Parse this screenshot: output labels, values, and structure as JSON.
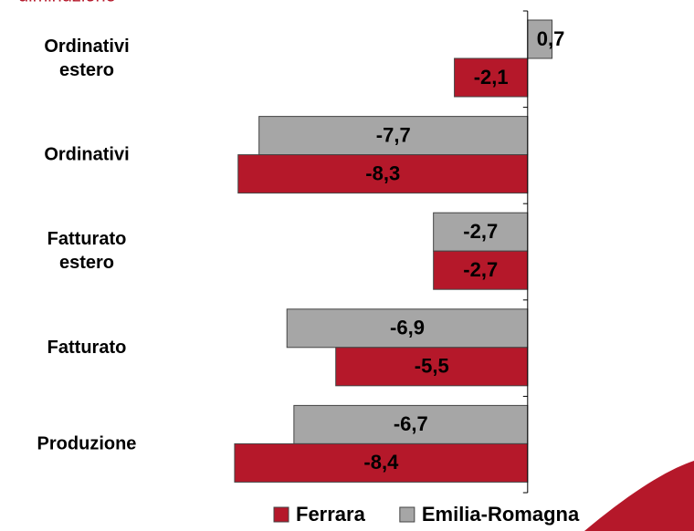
{
  "chart_data": {
    "type": "bar",
    "orientation": "horizontal",
    "title": "diminuzione",
    "categories": [
      "Ordinativi estero",
      "Ordinativi",
      "Fatturato estero",
      "Fatturato",
      "Produzione"
    ],
    "series": [
      {
        "name": "Emilia-Romagna",
        "color": "#a6a6a6",
        "values": [
          0.7,
          -7.7,
          -2.7,
          -6.9,
          -6.7
        ],
        "value_labels": [
          "0,7",
          "-7,7",
          "-2,7",
          "-6,9",
          "-6,7"
        ]
      },
      {
        "name": "Ferrara",
        "color": "#b5182a",
        "values": [
          -2.1,
          -8.3,
          -2.7,
          -5.5,
          -8.4
        ],
        "value_labels": [
          "-2,1",
          "-8,3",
          "-2,7",
          "-5,5",
          "-8,4"
        ]
      }
    ],
    "xlim": [
      -9,
      1
    ],
    "legend": "bottom"
  }
}
